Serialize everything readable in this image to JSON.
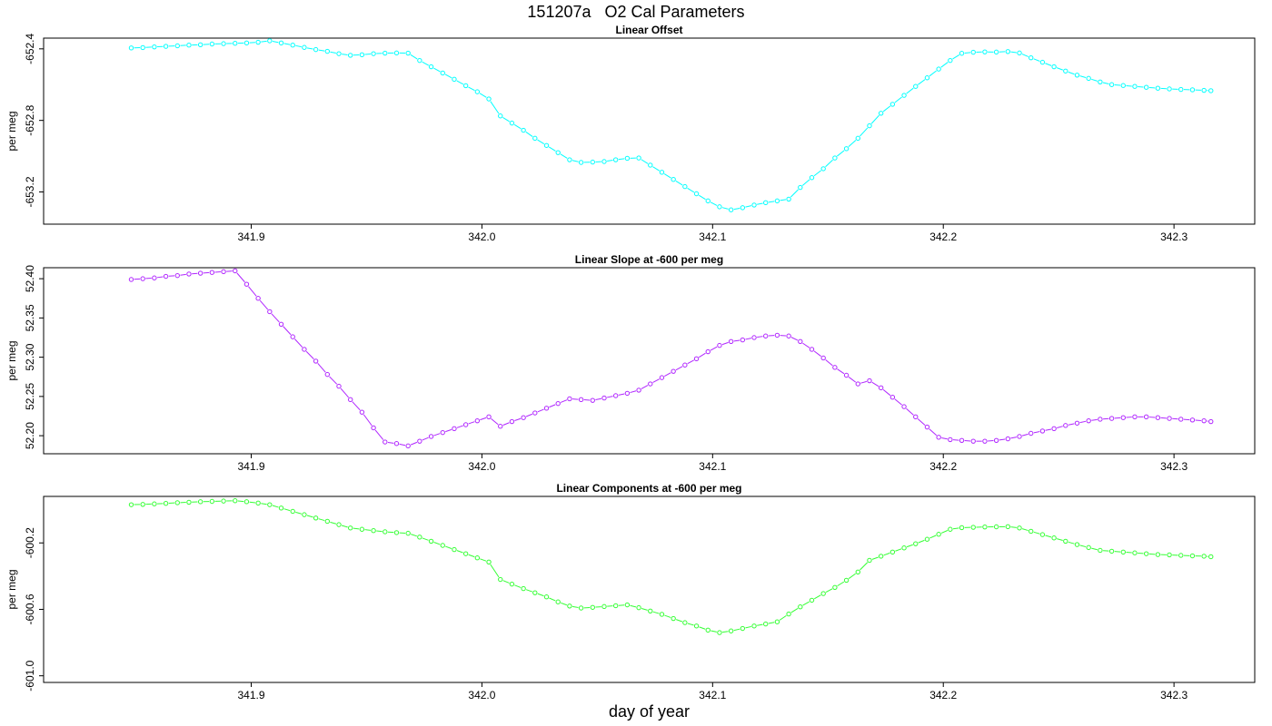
{
  "title": "151207a   O2 Cal Parameters",
  "xlabel": "day of year",
  "chart_data": [
    {
      "type": "line",
      "title": "Linear Offset",
      "ylabel": "per meg",
      "color": "#00ffff",
      "xlim": [
        341.81,
        342.335
      ],
      "ylim": [
        -653.38,
        -652.34
      ],
      "xticks": [
        341.9,
        342.0,
        342.1,
        342.2,
        342.3
      ],
      "xtick_labels": [
        "341.9",
        "342.0",
        "342.1",
        "342.2",
        "342.3"
      ],
      "yticks": [
        -653.2,
        -652.8,
        -652.4
      ],
      "ytick_labels": [
        "-653.2",
        "-652.8",
        "-652.4"
      ],
      "x": [
        341.848,
        341.853,
        341.858,
        341.863,
        341.868,
        341.873,
        341.878,
        341.883,
        341.888,
        341.893,
        341.898,
        341.903,
        341.908,
        341.913,
        341.918,
        341.923,
        341.928,
        341.933,
        341.938,
        341.943,
        341.948,
        341.953,
        341.958,
        341.963,
        341.968,
        341.973,
        341.978,
        341.983,
        341.988,
        341.993,
        341.998,
        342.003,
        342.008,
        342.013,
        342.018,
        342.023,
        342.028,
        342.033,
        342.038,
        342.043,
        342.048,
        342.053,
        342.058,
        342.063,
        342.068,
        342.073,
        342.078,
        342.083,
        342.088,
        342.093,
        342.098,
        342.103,
        342.108,
        342.113,
        342.118,
        342.123,
        342.128,
        342.133,
        342.138,
        342.143,
        342.148,
        342.153,
        342.158,
        342.163,
        342.168,
        342.173,
        342.178,
        342.183,
        342.188,
        342.193,
        342.198,
        342.203,
        342.208,
        342.213,
        342.218,
        342.223,
        342.228,
        342.233,
        342.238,
        342.243,
        342.248,
        342.253,
        342.258,
        342.263,
        342.268,
        342.273,
        342.278,
        342.283,
        342.288,
        342.293,
        342.298,
        342.303,
        342.308,
        342.313,
        342.316
      ],
      "y": [
        -652.395,
        -652.393,
        -652.389,
        -652.386,
        -652.383,
        -652.379,
        -652.377,
        -652.373,
        -652.371,
        -652.369,
        -652.367,
        -652.363,
        -652.355,
        -652.367,
        -652.379,
        -652.392,
        -652.404,
        -652.414,
        -652.427,
        -652.436,
        -652.433,
        -652.427,
        -652.424,
        -652.423,
        -652.424,
        -652.465,
        -652.5,
        -652.535,
        -652.57,
        -652.606,
        -652.64,
        -652.68,
        -652.775,
        -652.815,
        -652.855,
        -652.9,
        -652.94,
        -652.98,
        -653.02,
        -653.035,
        -653.033,
        -653.03,
        -653.02,
        -653.012,
        -653.01,
        -653.05,
        -653.09,
        -653.13,
        -653.17,
        -653.21,
        -653.25,
        -653.283,
        -653.3,
        -653.288,
        -653.273,
        -653.26,
        -653.25,
        -653.24,
        -653.175,
        -653.12,
        -653.07,
        -653.01,
        -652.958,
        -652.9,
        -652.83,
        -652.76,
        -652.71,
        -652.66,
        -652.61,
        -652.562,
        -652.513,
        -652.465,
        -652.425,
        -652.419,
        -652.417,
        -652.418,
        -652.415,
        -652.423,
        -652.45,
        -652.475,
        -652.5,
        -652.524,
        -652.547,
        -652.565,
        -652.585,
        -652.6,
        -652.605,
        -652.61,
        -652.615,
        -652.62,
        -652.624,
        -652.627,
        -652.629,
        -652.632,
        -652.634
      ]
    },
    {
      "type": "line",
      "title": "Linear Slope at -600 per meg",
      "ylabel": "per meg",
      "color": "#b026ff",
      "xlim": [
        341.81,
        342.335
      ],
      "ylim": [
        52.177,
        52.414
      ],
      "xticks": [
        341.9,
        342.0,
        342.1,
        342.2,
        342.3
      ],
      "xtick_labels": [
        "341.9",
        "342.0",
        "342.1",
        "342.2",
        "342.3"
      ],
      "yticks": [
        52.2,
        52.25,
        52.3,
        52.35,
        52.4
      ],
      "ytick_labels": [
        "52.20",
        "52.25",
        "52.30",
        "52.35",
        "52.40"
      ],
      "x": [
        341.848,
        341.853,
        341.858,
        341.863,
        341.868,
        341.873,
        341.878,
        341.883,
        341.888,
        341.893,
        341.898,
        341.903,
        341.908,
        341.913,
        341.918,
        341.923,
        341.928,
        341.933,
        341.938,
        341.943,
        341.948,
        341.953,
        341.958,
        341.963,
        341.968,
        341.973,
        341.978,
        341.983,
        341.988,
        341.993,
        341.998,
        342.003,
        342.008,
        342.013,
        342.018,
        342.023,
        342.028,
        342.033,
        342.038,
        342.043,
        342.048,
        342.053,
        342.058,
        342.063,
        342.068,
        342.073,
        342.078,
        342.083,
        342.088,
        342.093,
        342.098,
        342.103,
        342.108,
        342.113,
        342.118,
        342.123,
        342.128,
        342.133,
        342.138,
        342.143,
        342.148,
        342.153,
        342.158,
        342.163,
        342.168,
        342.173,
        342.178,
        342.183,
        342.188,
        342.193,
        342.198,
        342.203,
        342.208,
        342.213,
        342.218,
        342.223,
        342.228,
        342.233,
        342.238,
        342.243,
        342.248,
        342.253,
        342.258,
        342.263,
        342.268,
        342.273,
        342.278,
        342.283,
        342.288,
        342.293,
        342.298,
        342.303,
        342.308,
        342.313,
        342.316
      ],
      "y": [
        52.399,
        52.4,
        52.401,
        52.403,
        52.404,
        52.406,
        52.407,
        52.408,
        52.409,
        52.41,
        52.393,
        52.375,
        52.358,
        52.342,
        52.326,
        52.31,
        52.295,
        52.278,
        52.263,
        52.246,
        52.23,
        52.21,
        52.192,
        52.19,
        52.187,
        52.193,
        52.199,
        52.204,
        52.209,
        52.214,
        52.219,
        52.224,
        52.212,
        52.218,
        52.223,
        52.229,
        52.235,
        52.241,
        52.247,
        52.246,
        52.245,
        52.248,
        52.251,
        52.254,
        52.258,
        52.266,
        52.274,
        52.282,
        52.29,
        52.298,
        52.307,
        52.315,
        52.32,
        52.322,
        52.325,
        52.327,
        52.328,
        52.327,
        52.32,
        52.31,
        52.299,
        52.287,
        52.277,
        52.266,
        52.27,
        52.261,
        52.249,
        52.237,
        52.224,
        52.211,
        52.198,
        52.195,
        52.194,
        52.193,
        52.193,
        52.194,
        52.196,
        52.199,
        52.203,
        52.206,
        52.209,
        52.213,
        52.216,
        52.219,
        52.221,
        52.222,
        52.223,
        52.224,
        52.224,
        52.223,
        52.222,
        52.221,
        52.22,
        52.219,
        52.218
      ]
    },
    {
      "type": "line",
      "title": "Linear Components at -600 per meg",
      "ylabel": "per meg",
      "color": "#33ff33",
      "xlim": [
        341.81,
        342.335
      ],
      "ylim": [
        -601.04,
        -599.92
      ],
      "xticks": [
        341.9,
        342.0,
        342.1,
        342.2,
        342.3
      ],
      "xtick_labels": [
        "341.9",
        "342.0",
        "342.1",
        "342.2",
        "342.3"
      ],
      "yticks": [
        -601.0,
        -600.6,
        -600.2
      ],
      "ytick_labels": [
        "-601.0",
        "-600.6",
        "-600.2"
      ],
      "x": [
        341.848,
        341.853,
        341.858,
        341.863,
        341.868,
        341.873,
        341.878,
        341.883,
        341.888,
        341.893,
        341.898,
        341.903,
        341.908,
        341.913,
        341.918,
        341.923,
        341.928,
        341.933,
        341.938,
        341.943,
        341.948,
        341.953,
        341.958,
        341.963,
        341.968,
        341.973,
        341.978,
        341.983,
        341.988,
        341.993,
        341.998,
        342.003,
        342.008,
        342.013,
        342.018,
        342.023,
        342.028,
        342.033,
        342.038,
        342.043,
        342.048,
        342.053,
        342.058,
        342.063,
        342.068,
        342.073,
        342.078,
        342.083,
        342.088,
        342.093,
        342.098,
        342.103,
        342.108,
        342.113,
        342.118,
        342.123,
        342.128,
        342.133,
        342.138,
        342.143,
        342.148,
        342.153,
        342.158,
        342.163,
        342.168,
        342.173,
        342.178,
        342.183,
        342.188,
        342.193,
        342.198,
        342.203,
        342.208,
        342.213,
        342.218,
        342.223,
        342.228,
        342.233,
        342.238,
        342.243,
        342.248,
        342.253,
        342.258,
        342.263,
        342.268,
        342.273,
        342.278,
        342.283,
        342.288,
        342.293,
        342.298,
        342.303,
        342.308,
        342.313,
        342.316
      ],
      "y": [
        -599.97,
        -599.968,
        -599.965,
        -599.962,
        -599.958,
        -599.955,
        -599.952,
        -599.95,
        -599.948,
        -599.946,
        -599.952,
        -599.96,
        -599.97,
        -599.99,
        -600.01,
        -600.03,
        -600.05,
        -600.07,
        -600.09,
        -600.11,
        -600.118,
        -600.126,
        -600.133,
        -600.138,
        -600.142,
        -600.165,
        -600.19,
        -600.215,
        -600.24,
        -600.265,
        -600.29,
        -600.315,
        -600.42,
        -600.448,
        -600.475,
        -600.5,
        -600.525,
        -600.555,
        -600.58,
        -600.592,
        -600.588,
        -600.583,
        -600.578,
        -600.573,
        -600.59,
        -600.61,
        -600.63,
        -600.655,
        -600.68,
        -600.7,
        -600.725,
        -600.74,
        -600.73,
        -600.715,
        -600.7,
        -600.688,
        -600.675,
        -600.628,
        -600.585,
        -600.545,
        -600.505,
        -600.468,
        -600.425,
        -600.375,
        -600.305,
        -600.28,
        -600.255,
        -600.23,
        -600.205,
        -600.178,
        -600.148,
        -600.118,
        -600.108,
        -600.106,
        -600.104,
        -600.103,
        -600.102,
        -600.11,
        -600.13,
        -600.15,
        -600.17,
        -600.19,
        -600.21,
        -600.228,
        -600.245,
        -600.25,
        -600.255,
        -600.26,
        -600.265,
        -600.27,
        -600.272,
        -600.275,
        -600.278,
        -600.28,
        -600.283
      ]
    }
  ]
}
